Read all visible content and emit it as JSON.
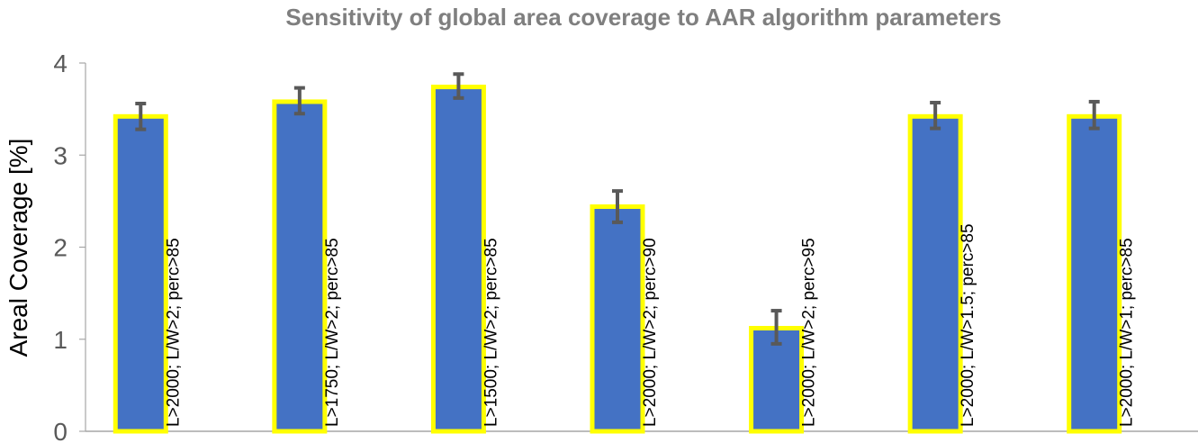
{
  "chart_data": {
    "type": "bar",
    "title": "Sensitivity of global area coverage to AAR algorithm parameters",
    "xlabel": "",
    "ylabel": "Areal Coverage [%]",
    "ylim": [
      0,
      4
    ],
    "yticks": [
      "0",
      "1",
      "2",
      "3",
      "4"
    ],
    "grid": false,
    "legend": "none",
    "categories": [
      "L>2000; L/W>2; perc>85",
      "L>1750; L/W>2; perc>85",
      "L>1500; L/W>2; perc>85",
      "L>2000; L/W>2; perc>90",
      "L>2000; L/W>2; perc>95",
      "L>2000; L/W>1.5; perc>85",
      "L>2000; L/W>1; perc>85"
    ],
    "values": [
      3.42,
      3.58,
      3.74,
      2.44,
      1.12,
      3.42,
      3.42
    ],
    "error_low": [
      3.28,
      3.45,
      3.62,
      2.27,
      0.95,
      3.29,
      3.29
    ],
    "error_high": [
      3.56,
      3.73,
      3.88,
      2.61,
      1.31,
      3.57,
      3.58
    ],
    "colors": {
      "bar_fill": "#4472c4",
      "bar_outline": "#ffff00",
      "error_bar": "#595959",
      "axis": "#a6a6a6",
      "title": "#7f7f7f"
    }
  }
}
